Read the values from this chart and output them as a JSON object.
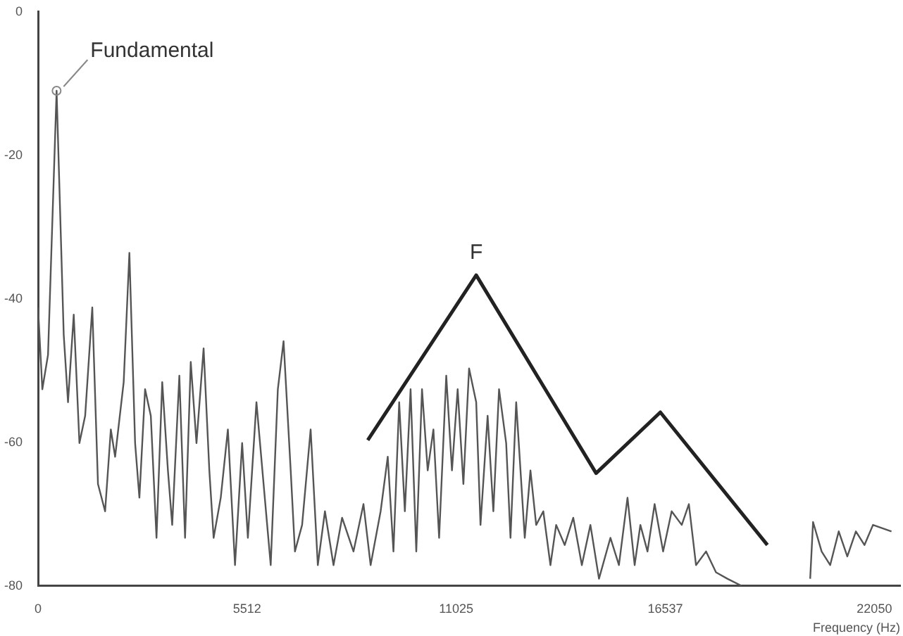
{
  "chart_data": {
    "type": "line",
    "xlabel": "Frequency (Hz)",
    "xlim": [
      0,
      22730
    ],
    "xticks": [
      0,
      5512,
      11025,
      16537,
      22050
    ],
    "ylim": [
      -80,
      0
    ],
    "yticks": [
      0,
      -20,
      -40,
      -60,
      -80
    ],
    "grid": false,
    "legend": false,
    "marker": "none",
    "annotations": [
      {
        "text": "Fundamental",
        "x": 489,
        "y": -11
      },
      {
        "text": "F",
        "x": 11552,
        "y": -36.7
      }
    ],
    "series": [
      {
        "color": "#555555",
        "x": [
          0,
          113,
          263,
          489,
          677,
          790,
          941,
          1091,
          1242,
          1430,
          1580,
          1768,
          1919,
          2032,
          2258,
          2408,
          2559,
          2672,
          2822,
          2973,
          3123,
          3274,
          3424,
          3537,
          3725,
          3876,
          4026,
          4177,
          4365,
          4516,
          4629,
          4817,
          5005,
          5193,
          5381,
          5532,
          5758,
          5946,
          6134,
          6322,
          6473,
          6661,
          6773,
          6962,
          7187,
          7376,
          7564,
          7790,
          8016,
          8317,
          8580,
          8768,
          9032,
          9220,
          9370,
          9521,
          9671,
          9822,
          9972,
          10123,
          10273,
          10424,
          10574,
          10762,
          10913,
          11063,
          11214,
          11364,
          11552,
          11665,
          11853,
          12004,
          12154,
          12342,
          12456,
          12606,
          12832,
          12982,
          13133,
          13321,
          13509,
          13660,
          13886,
          14111,
          14337,
          14563,
          14789,
          15090,
          15315,
          15541,
          15729,
          15880,
          16068,
          16256,
          16480,
          16705,
          16971,
          17159,
          17347,
          17611,
          17874,
          18175,
          18551,
          19400,
          20357,
          20433,
          20659,
          20884,
          21110,
          21336,
          21562,
          21788,
          22013,
          22500
        ],
        "values": [
          -41.2,
          -52.6,
          -47.8,
          -11.0,
          -45.0,
          -54.4,
          -42.2,
          -60.1,
          -56.3,
          -41.2,
          -65.8,
          -69.6,
          -58.2,
          -62.0,
          -51.6,
          -33.6,
          -60.1,
          -67.7,
          -52.6,
          -56.3,
          -73.3,
          -51.6,
          -63.9,
          -71.5,
          -50.7,
          -73.3,
          -48.8,
          -60.1,
          -46.9,
          -63.9,
          -73.3,
          -67.7,
          -58.2,
          -77.1,
          -60.1,
          -73.3,
          -54.4,
          -65.8,
          -77.1,
          -52.6,
          -45.9,
          -63.9,
          -75.2,
          -71.5,
          -58.2,
          -77.1,
          -69.6,
          -77.1,
          -70.5,
          -75.2,
          -68.6,
          -77.1,
          -69.6,
          -62.0,
          -75.2,
          -54.4,
          -69.6,
          -52.6,
          -75.2,
          -52.6,
          -63.9,
          -58.2,
          -73.3,
          -50.7,
          -63.9,
          -52.6,
          -65.8,
          -49.7,
          -54.4,
          -71.5,
          -56.3,
          -69.6,
          -52.6,
          -60.1,
          -73.3,
          -54.4,
          -73.3,
          -63.9,
          -71.5,
          -69.6,
          -77.1,
          -71.5,
          -74.3,
          -70.5,
          -77.1,
          -71.5,
          -79.0,
          -73.3,
          -77.1,
          -67.7,
          -77.1,
          -71.5,
          -75.2,
          -68.6,
          -75.2,
          -69.6,
          -71.5,
          -68.6,
          -77.1,
          -75.2,
          -78.1,
          -79.0,
          -80,
          null,
          -79.0,
          -71.1,
          -75.2,
          -77.1,
          -72.4,
          -75.9,
          -72.4,
          -74.3,
          -71.5,
          -72.4
        ]
      },
      {
        "type": "line",
        "color": "#222222",
        "x": [
          8693,
          11552,
          14713,
          16407,
          19229
        ],
        "values": [
          -59.7,
          -36.7,
          -64.3,
          -55.8,
          -74.3
        ]
      }
    ]
  }
}
